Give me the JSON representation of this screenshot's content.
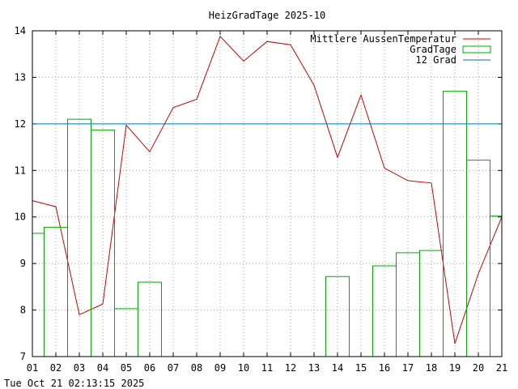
{
  "chart_data": {
    "type": "line",
    "title": "HeizGradTage 2025-10",
    "xlabel": "",
    "ylabel": "",
    "ylim": [
      7,
      14
    ],
    "xlim": [
      1,
      21
    ],
    "y_ticks": [
      "7",
      "8",
      "9",
      "10",
      "11",
      "12",
      "13",
      "14"
    ],
    "x_ticks": [
      "01",
      "02",
      "03",
      "04",
      "05",
      "06",
      "07",
      "08",
      "09",
      "10",
      "11",
      "12",
      "13",
      "14",
      "15",
      "16",
      "17",
      "18",
      "19",
      "20",
      "21"
    ],
    "grid": true,
    "legend_position": "top-right",
    "series": [
      {
        "name": "Mittlere AussenTemperatur",
        "type": "line",
        "color": "#cc0000",
        "x": [
          1,
          2,
          3,
          4,
          5,
          6,
          7,
          8,
          9,
          10,
          11,
          12,
          13,
          14,
          15,
          16,
          17,
          18,
          19,
          20,
          21
        ],
        "values": [
          10.35,
          10.22,
          7.9,
          8.13,
          11.97,
          11.4,
          12.35,
          12.53,
          13.88,
          13.35,
          13.77,
          13.7,
          12.83,
          11.28,
          12.62,
          11.05,
          10.78,
          10.73,
          7.28,
          8.78,
          10.0
        ]
      },
      {
        "name": "GradTage",
        "type": "steps",
        "color": "#00aa00",
        "x": [
          1,
          2,
          3,
          4,
          5,
          6,
          7,
          8,
          9,
          10,
          11,
          12,
          13,
          14,
          15,
          16,
          17,
          18,
          19,
          20,
          21
        ],
        "values": [
          9.65,
          9.78,
          12.1,
          11.87,
          8.03,
          8.6,
          null,
          null,
          null,
          null,
          null,
          null,
          null,
          8.72,
          null,
          8.95,
          9.23,
          9.28,
          12.7,
          11.22,
          10.02
        ]
      },
      {
        "name": "12 Grad",
        "type": "hline",
        "color": "#0077aa",
        "values": [
          12
        ]
      }
    ]
  },
  "footer": {
    "timestamp": "Tue Oct 21 02:13:15 2025"
  }
}
